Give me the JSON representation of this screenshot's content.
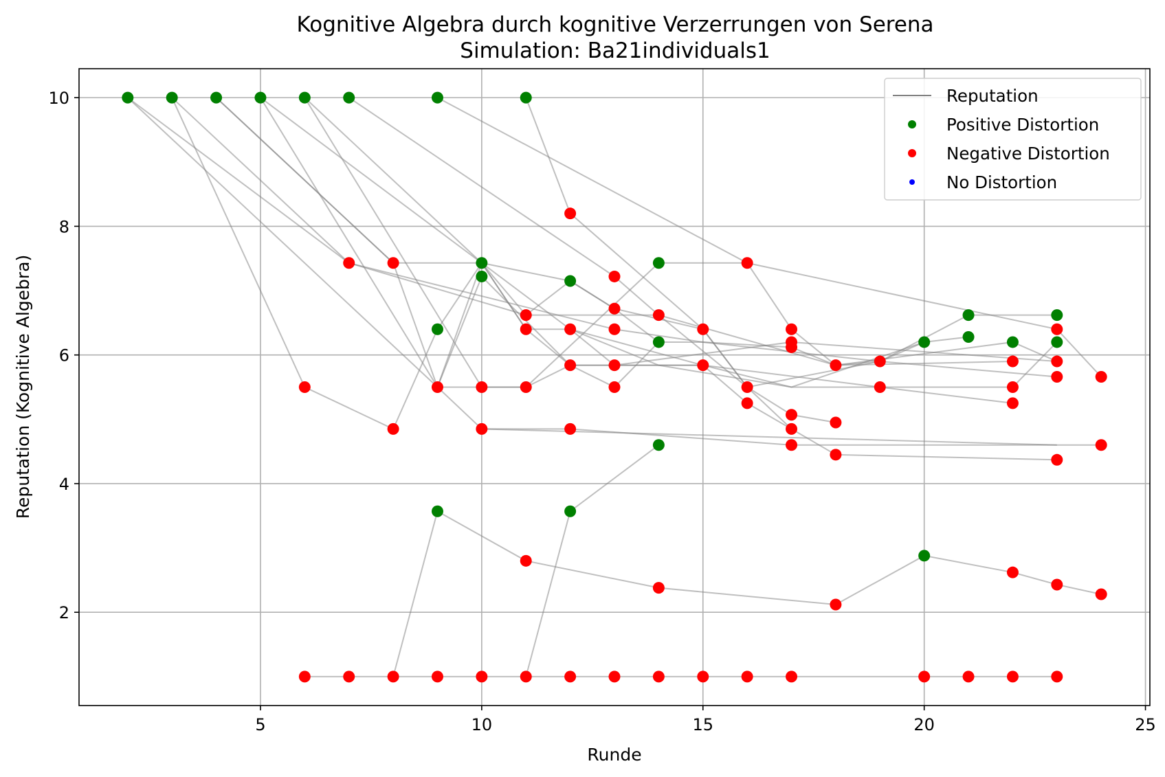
{
  "chart_data": {
    "type": "scatter",
    "title": "Kognitive Algebra durch kognitive Verzerrungen von Serena",
    "subtitle": "Simulation: Ba21individuals1",
    "xlabel": "Runde",
    "ylabel": "Reputation (Kognitive Algebra)",
    "xlim": [
      0.9,
      25.1
    ],
    "ylim": [
      0.55,
      10.45
    ],
    "xticks": [
      5,
      10,
      15,
      20,
      25
    ],
    "yticks": [
      2,
      4,
      6,
      8,
      10
    ],
    "grid": true,
    "legend_position": "top-right",
    "legend": [
      {
        "label": "Reputation",
        "kind": "line",
        "color": "#808080"
      },
      {
        "label": "Positive Distortion",
        "kind": "marker",
        "color": "#008000"
      },
      {
        "label": "Negative Distortion",
        "kind": "marker",
        "color": "#ff0000"
      },
      {
        "label": "No Distortion",
        "kind": "marker",
        "color": "#0000ff"
      }
    ],
    "colors": {
      "positive": "#008000",
      "negative": "#ff0000",
      "none": "#0000ff",
      "line": "#808080"
    },
    "trajectories": [
      [
        [
          2,
          10
        ],
        [
          9,
          5.5
        ],
        [
          10,
          7.43
        ],
        [
          11,
          6.4
        ],
        [
          12,
          5.84
        ],
        [
          13,
          5.5
        ],
        [
          14,
          6.2
        ]
      ],
      [
        [
          2,
          10
        ],
        [
          7,
          7.43
        ],
        [
          11,
          6.62
        ],
        [
          14,
          6.62
        ],
        [
          16,
          5.5
        ],
        [
          17,
          4.85
        ]
      ],
      [
        [
          3,
          10
        ],
        [
          6,
          5.5
        ],
        [
          8,
          4.85
        ],
        [
          9,
          6.4
        ],
        [
          10,
          7.43
        ],
        [
          11,
          6.62
        ],
        [
          12,
          7.15
        ],
        [
          13,
          6.72
        ],
        [
          14,
          6.2
        ],
        [
          15,
          6.2
        ],
        [
          17,
          6.12
        ]
      ],
      [
        [
          3,
          10
        ],
        [
          7,
          7.43
        ],
        [
          13,
          6.4
        ],
        [
          15,
          6.2
        ],
        [
          19,
          5.9
        ],
        [
          20,
          6.2
        ],
        [
          21,
          6.28
        ]
      ],
      [
        [
          4,
          10
        ],
        [
          8,
          7.43
        ],
        [
          10,
          7.43
        ],
        [
          11,
          6.4
        ],
        [
          12,
          6.4
        ],
        [
          14,
          5.84
        ],
        [
          17,
          5.5
        ],
        [
          22,
          5.5
        ],
        [
          23,
          6.2
        ]
      ],
      [
        [
          4,
          10
        ],
        [
          8,
          7.43
        ],
        [
          9,
          5.5
        ],
        [
          10,
          4.85
        ],
        [
          12,
          4.85
        ],
        [
          17,
          4.6
        ],
        [
          23,
          4.6
        ]
      ],
      [
        [
          5,
          10
        ],
        [
          9,
          5.5
        ],
        [
          11,
          5.5
        ],
        [
          12,
          5.84
        ],
        [
          15,
          5.84
        ],
        [
          16,
          5.25
        ],
        [
          18,
          4.45
        ],
        [
          23,
          4.37
        ]
      ],
      [
        [
          5,
          10
        ],
        [
          10,
          7.43
        ],
        [
          12,
          7.15
        ],
        [
          13,
          6.72
        ],
        [
          15,
          6.4
        ],
        [
          16,
          5.5
        ],
        [
          17,
          5.07
        ],
        [
          18,
          4.95
        ]
      ],
      [
        [
          6,
          10
        ],
        [
          10,
          7.43
        ],
        [
          12,
          6.4
        ],
        [
          13,
          5.84
        ],
        [
          17,
          6.2
        ],
        [
          23,
          5.9
        ]
      ],
      [
        [
          6,
          10
        ],
        [
          10,
          5.5
        ],
        [
          11,
          5.5
        ],
        [
          14,
          7.43
        ],
        [
          16,
          7.43
        ],
        [
          23,
          6.4
        ],
        [
          24,
          5.66
        ]
      ],
      [
        [
          7,
          10
        ],
        [
          13,
          7.22
        ],
        [
          14,
          6.62
        ],
        [
          18,
          5.84
        ],
        [
          22,
          5.9
        ]
      ],
      [
        [
          9,
          10
        ],
        [
          16,
          7.43
        ],
        [
          17,
          6.4
        ],
        [
          18,
          5.84
        ],
        [
          22,
          6.2
        ],
        [
          23,
          5.9
        ]
      ],
      [
        [
          11,
          10
        ],
        [
          12,
          8.2
        ],
        [
          15,
          6.4
        ],
        [
          16,
          5.5
        ],
        [
          19,
          5.9
        ],
        [
          21,
          6.62
        ],
        [
          23,
          6.62
        ]
      ],
      [
        [
          9,
          5.5
        ],
        [
          10,
          7.22
        ],
        [
          12,
          5.84
        ],
        [
          13,
          5.84
        ],
        [
          15,
          5.84
        ],
        [
          17,
          5.5
        ],
        [
          20,
          6.2
        ]
      ],
      [
        [
          12,
          6.4
        ],
        [
          15,
          5.84
        ],
        [
          19,
          5.5
        ],
        [
          22,
          5.25
        ]
      ],
      [
        [
          10,
          4.85
        ],
        [
          23,
          4.6
        ],
        [
          24,
          4.6
        ]
      ],
      [
        [
          9,
          3.57
        ],
        [
          11,
          2.8
        ],
        [
          14,
          2.38
        ],
        [
          18,
          2.12
        ],
        [
          20,
          2.88
        ],
        [
          22,
          2.62
        ],
        [
          23,
          2.43
        ],
        [
          24,
          2.28
        ]
      ],
      [
        [
          11,
          1
        ],
        [
          12,
          3.57
        ],
        [
          14,
          4.6
        ]
      ],
      [
        [
          8,
          1
        ],
        [
          9,
          3.57
        ]
      ],
      [
        [
          6,
          1
        ],
        [
          7,
          1
        ],
        [
          8,
          1
        ],
        [
          9,
          1
        ],
        [
          10,
          1
        ],
        [
          11,
          1
        ],
        [
          12,
          1
        ],
        [
          13,
          1
        ],
        [
          14,
          1
        ],
        [
          15,
          1
        ],
        [
          16,
          1
        ],
        [
          17,
          1
        ],
        [
          20,
          1
        ],
        [
          21,
          1
        ],
        [
          22,
          1
        ],
        [
          23,
          1
        ]
      ],
      [
        [
          17,
          6.12
        ],
        [
          18,
          5.84
        ],
        [
          19,
          5.9
        ],
        [
          23,
          5.66
        ]
      ]
    ],
    "points": [
      [
        2,
        10,
        "positive"
      ],
      [
        3,
        10,
        "positive"
      ],
      [
        4,
        10,
        "positive"
      ],
      [
        5,
        10,
        "positive"
      ],
      [
        6,
        10,
        "positive"
      ],
      [
        7,
        10,
        "positive"
      ],
      [
        9,
        10,
        "positive"
      ],
      [
        11,
        10,
        "positive"
      ],
      [
        10,
        7.43,
        "positive"
      ],
      [
        10,
        7.22,
        "positive"
      ],
      [
        9,
        6.4,
        "positive"
      ],
      [
        12,
        7.15,
        "positive"
      ],
      [
        14,
        7.43,
        "positive"
      ],
      [
        14,
        6.2,
        "positive"
      ],
      [
        14,
        4.6,
        "positive"
      ],
      [
        9,
        3.57,
        "positive"
      ],
      [
        12,
        3.57,
        "positive"
      ],
      [
        20,
        6.2,
        "positive"
      ],
      [
        21,
        6.62,
        "positive"
      ],
      [
        21,
        6.28,
        "positive"
      ],
      [
        22,
        6.2,
        "positive"
      ],
      [
        23,
        6.62,
        "positive"
      ],
      [
        23,
        6.2,
        "positive"
      ],
      [
        20,
        2.88,
        "positive"
      ],
      [
        7,
        7.43,
        "negative"
      ],
      [
        8,
        7.43,
        "negative"
      ],
      [
        12,
        8.2,
        "negative"
      ],
      [
        13,
        7.22,
        "negative"
      ],
      [
        16,
        7.43,
        "negative"
      ],
      [
        11,
        6.62,
        "negative"
      ],
      [
        13,
        6.72,
        "negative"
      ],
      [
        14,
        6.62,
        "negative"
      ],
      [
        11,
        6.4,
        "negative"
      ],
      [
        12,
        6.4,
        "negative"
      ],
      [
        13,
        6.4,
        "negative"
      ],
      [
        15,
        6.4,
        "negative"
      ],
      [
        17,
        6.4,
        "negative"
      ],
      [
        23,
        6.4,
        "negative"
      ],
      [
        17,
        6.2,
        "negative"
      ],
      [
        17,
        6.12,
        "negative"
      ],
      [
        19,
        5.9,
        "negative"
      ],
      [
        22,
        5.9,
        "negative"
      ],
      [
        23,
        5.9,
        "negative"
      ],
      [
        12,
        5.84,
        "negative"
      ],
      [
        13,
        5.84,
        "negative"
      ],
      [
        15,
        5.84,
        "negative"
      ],
      [
        18,
        5.84,
        "negative"
      ],
      [
        23,
        5.66,
        "negative"
      ],
      [
        24,
        5.66,
        "negative"
      ],
      [
        6,
        5.5,
        "negative"
      ],
      [
        9,
        5.5,
        "negative"
      ],
      [
        10,
        5.5,
        "negative"
      ],
      [
        11,
        5.5,
        "negative"
      ],
      [
        13,
        5.5,
        "negative"
      ],
      [
        16,
        5.5,
        "negative"
      ],
      [
        19,
        5.5,
        "negative"
      ],
      [
        22,
        5.5,
        "negative"
      ],
      [
        16,
        5.25,
        "negative"
      ],
      [
        22,
        5.25,
        "negative"
      ],
      [
        17,
        5.07,
        "negative"
      ],
      [
        18,
        4.95,
        "negative"
      ],
      [
        8,
        4.85,
        "negative"
      ],
      [
        10,
        4.85,
        "negative"
      ],
      [
        12,
        4.85,
        "negative"
      ],
      [
        17,
        4.85,
        "negative"
      ],
      [
        17,
        4.6,
        "negative"
      ],
      [
        24,
        4.6,
        "negative"
      ],
      [
        18,
        4.45,
        "negative"
      ],
      [
        23,
        4.37,
        "negative"
      ],
      [
        11,
        2.8,
        "negative"
      ],
      [
        14,
        2.38,
        "negative"
      ],
      [
        18,
        2.12,
        "negative"
      ],
      [
        22,
        2.62,
        "negative"
      ],
      [
        23,
        2.43,
        "negative"
      ],
      [
        24,
        2.28,
        "negative"
      ],
      [
        6,
        1,
        "negative"
      ],
      [
        7,
        1,
        "negative"
      ],
      [
        8,
        1,
        "negative"
      ],
      [
        9,
        1,
        "negative"
      ],
      [
        10,
        1,
        "negative"
      ],
      [
        11,
        1,
        "negative"
      ],
      [
        12,
        1,
        "negative"
      ],
      [
        13,
        1,
        "negative"
      ],
      [
        14,
        1,
        "negative"
      ],
      [
        15,
        1,
        "negative"
      ],
      [
        16,
        1,
        "negative"
      ],
      [
        17,
        1,
        "negative"
      ],
      [
        20,
        1,
        "negative"
      ],
      [
        21,
        1,
        "negative"
      ],
      [
        22,
        1,
        "negative"
      ],
      [
        23,
        1,
        "negative"
      ]
    ]
  }
}
